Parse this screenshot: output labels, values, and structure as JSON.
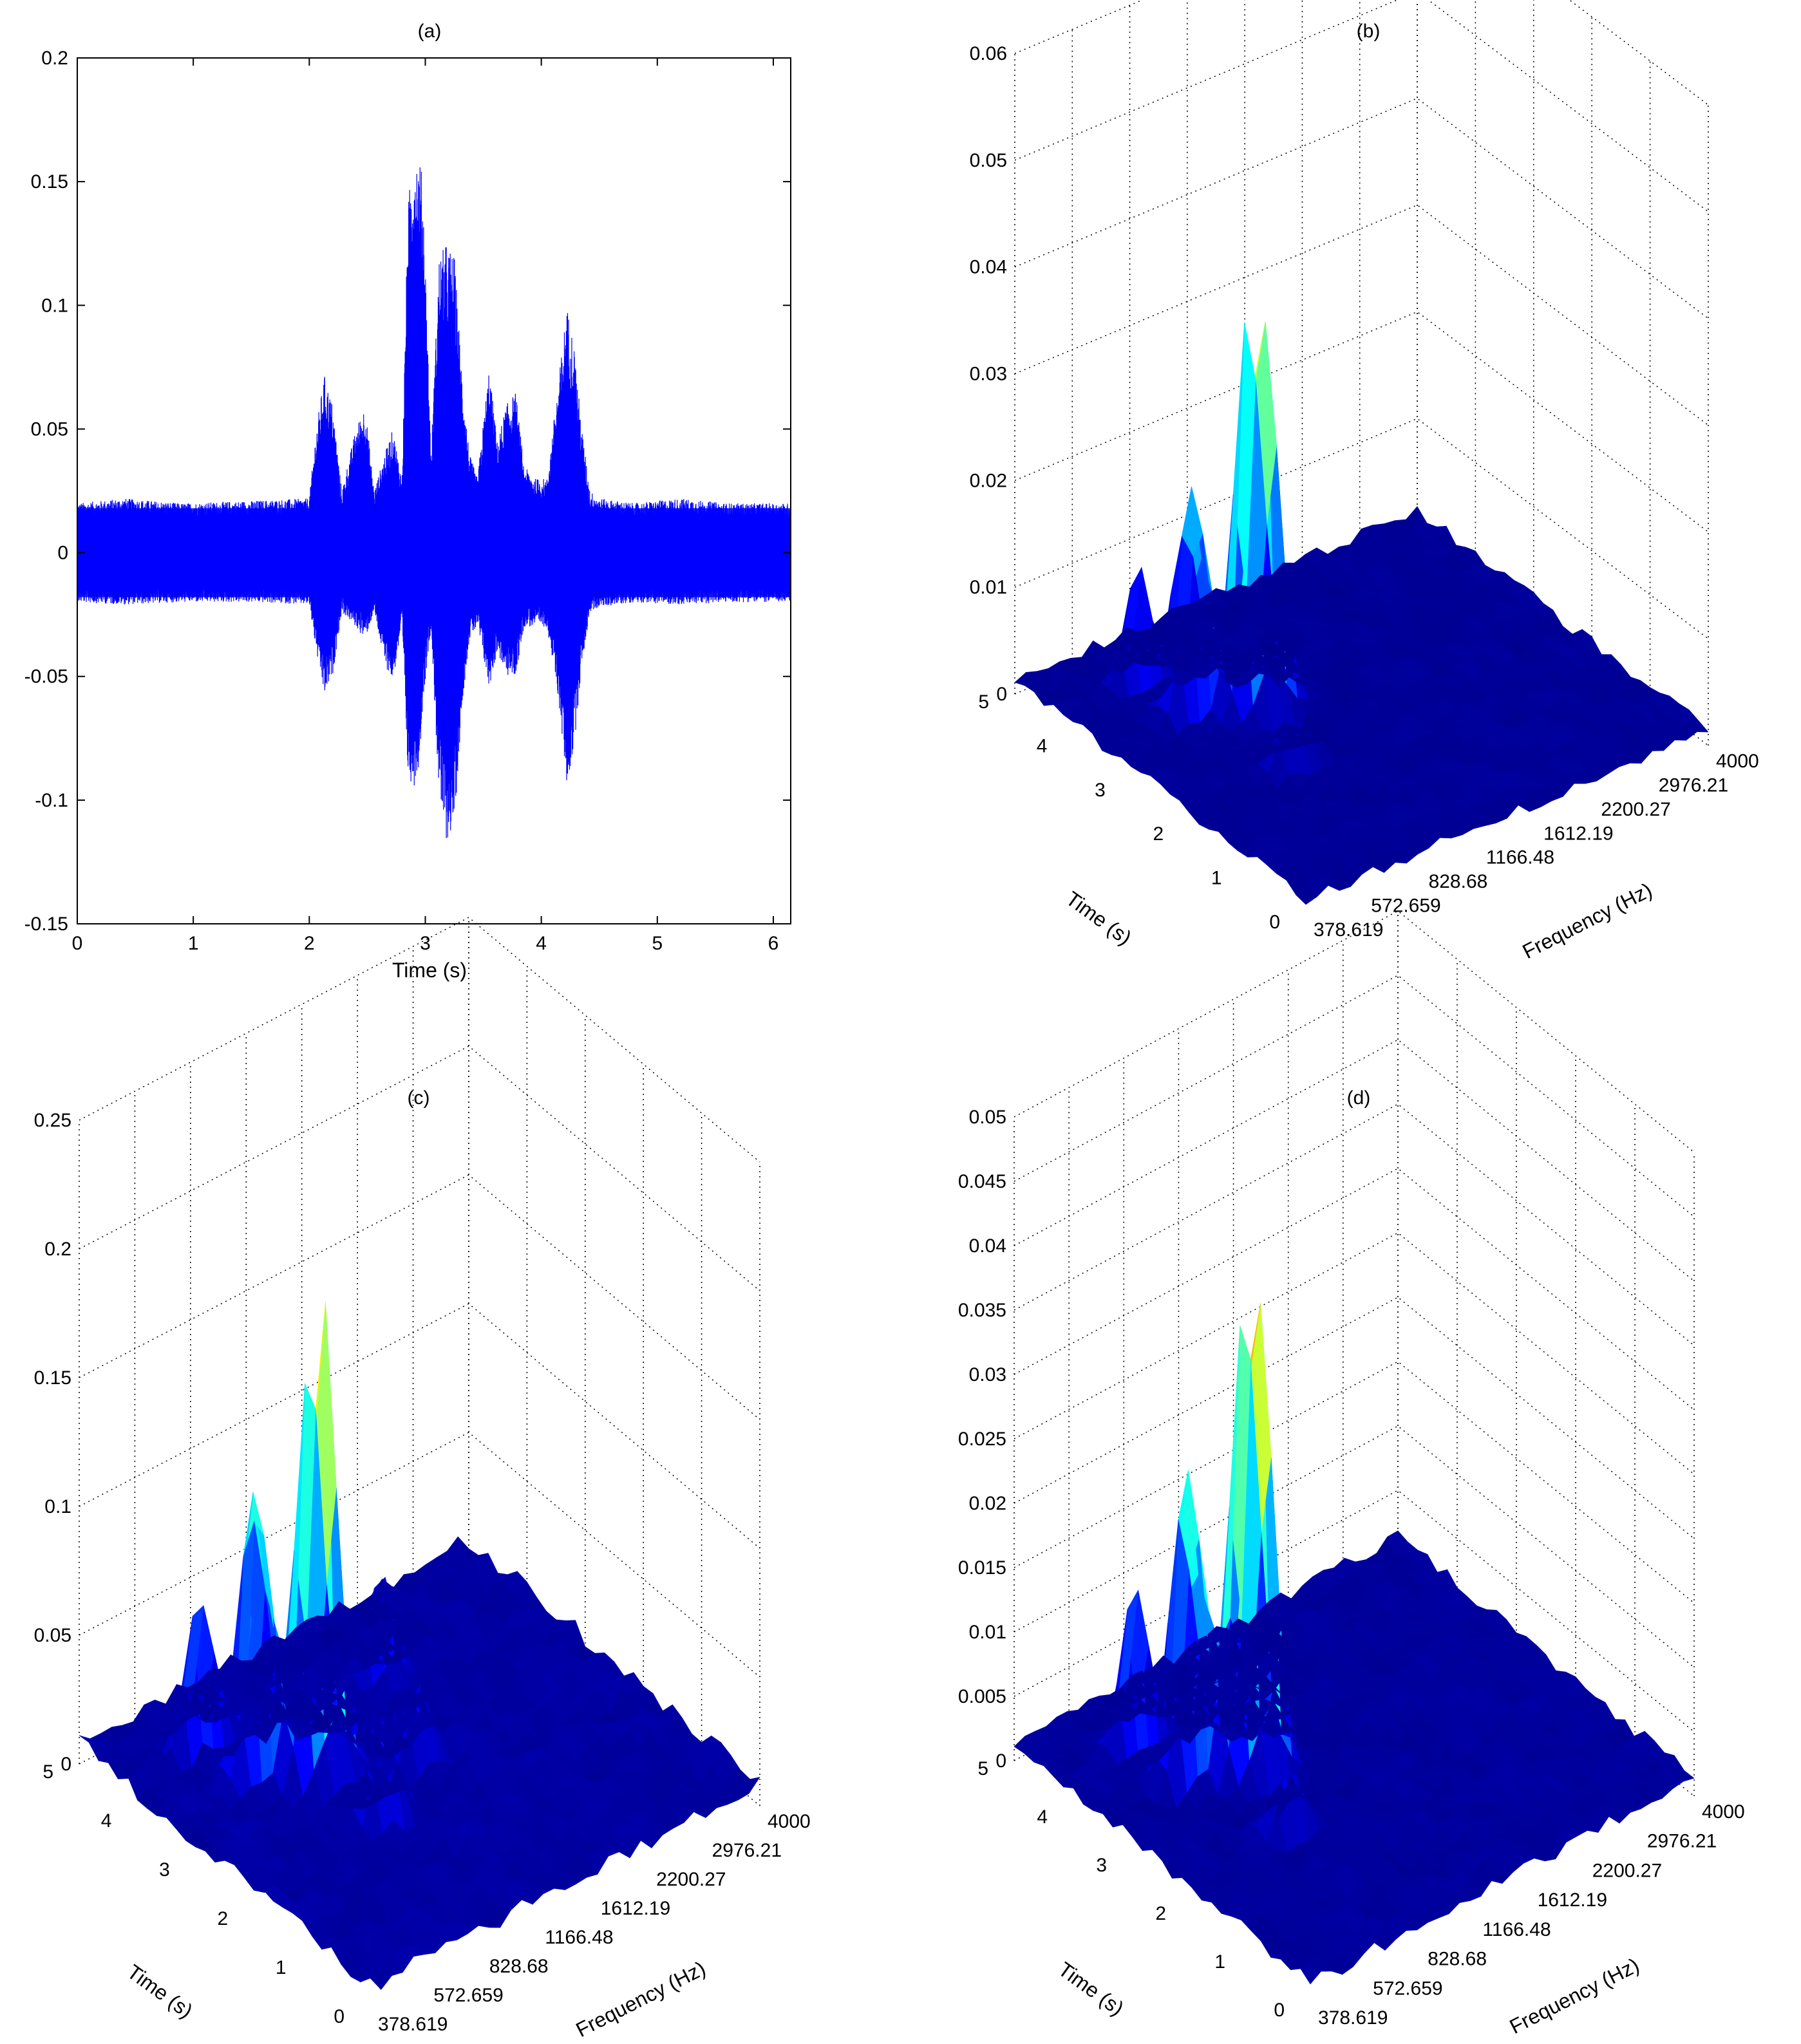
{
  "figure": {
    "background": "#ffffff",
    "signal_color": "#0000ff"
  },
  "chart_data": [
    {
      "id": "a",
      "type": "line",
      "title": "(a)",
      "xlabel": "Time (s)",
      "ylabel": "",
      "xlim": [
        0,
        6.15
      ],
      "ylim": [
        -0.15,
        0.2
      ],
      "xticks": [
        0,
        1,
        2,
        3,
        4,
        5,
        6
      ],
      "yticks": [
        -0.15,
        -0.1,
        -0.05,
        0,
        0.05,
        0.1,
        0.15,
        0.2
      ],
      "grid": false,
      "series_color": "#0000ff",
      "noise_floor": 0.018,
      "envelope": {
        "t": [
          0,
          0.4,
          0.9,
          1.5,
          2.0,
          2.06,
          2.13,
          2.2,
          2.28,
          2.4,
          2.48,
          2.56,
          2.65,
          2.72,
          2.8,
          2.85,
          2.9,
          2.95,
          2.98,
          3.05,
          3.12,
          3.18,
          3.25,
          3.32,
          3.38,
          3.45,
          3.55,
          3.62,
          3.7,
          3.78,
          3.85,
          3.95,
          4.05,
          4.15,
          4.22,
          4.28,
          4.35,
          4.42,
          4.5,
          4.8,
          5.2,
          5.6,
          6.15
        ],
        "upper": [
          0.02,
          0.022,
          0.02,
          0.021,
          0.022,
          0.05,
          0.072,
          0.06,
          0.025,
          0.05,
          0.06,
          0.025,
          0.04,
          0.05,
          0.03,
          0.14,
          0.165,
          0.16,
          0.15,
          0.04,
          0.12,
          0.125,
          0.12,
          0.07,
          0.04,
          0.03,
          0.075,
          0.045,
          0.06,
          0.065,
          0.035,
          0.03,
          0.03,
          0.07,
          0.1,
          0.085,
          0.05,
          0.025,
          0.022,
          0.02,
          0.022,
          0.02,
          0.02
        ],
        "lower": [
          -0.02,
          -0.021,
          -0.02,
          -0.02,
          -0.021,
          -0.04,
          -0.058,
          -0.05,
          -0.024,
          -0.03,
          -0.035,
          -0.024,
          -0.045,
          -0.052,
          -0.03,
          -0.09,
          -0.095,
          -0.085,
          -0.06,
          -0.03,
          -0.1,
          -0.117,
          -0.11,
          -0.06,
          -0.035,
          -0.03,
          -0.055,
          -0.04,
          -0.05,
          -0.05,
          -0.03,
          -0.03,
          -0.03,
          -0.06,
          -0.095,
          -0.08,
          -0.045,
          -0.024,
          -0.022,
          -0.02,
          -0.021,
          -0.02,
          -0.02
        ]
      }
    },
    {
      "id": "b",
      "type": "surface",
      "title": "(b)",
      "xlabel": "Frequency (Hz)",
      "ylabel": "Time (s)",
      "zlabel": "",
      "freq_ticks": [
        "378.619",
        "572.659",
        "828.68",
        "1166.48",
        "1612.19",
        "2200.27",
        "2976.21",
        "4000"
      ],
      "time_ticks": [
        0,
        1,
        2,
        3,
        4,
        5
      ],
      "zlim": [
        0,
        0.06
      ],
      "zticks": [
        0,
        0.01,
        0.02,
        0.03,
        0.04,
        0.05,
        0.06
      ],
      "colormap": "jet",
      "floor_level": 0.002,
      "peaks": [
        {
          "time": 3.0,
          "freq_index": 2.3,
          "z": 0.04
        },
        {
          "time": 3.2,
          "freq_index": 2.2,
          "z": 0.036
        },
        {
          "time": 3.6,
          "freq_index": 1.6,
          "z": 0.024
        },
        {
          "time": 3.4,
          "freq_index": 1.5,
          "z": 0.022
        },
        {
          "time": 4.2,
          "freq_index": 1.3,
          "z": 0.012
        },
        {
          "time": 2.1,
          "freq_index": 1.8,
          "z": 0.009
        }
      ]
    },
    {
      "id": "c",
      "type": "surface",
      "title": "(c)",
      "xlabel": "Frequency (Hz)",
      "ylabel": "Time (s)",
      "zlabel": "",
      "freq_ticks": [
        "378.619",
        "572.659",
        "828.68",
        "1166.48",
        "1612.19",
        "2200.27",
        "2976.21",
        "4000"
      ],
      "time_ticks": [
        0,
        1,
        2,
        3,
        4,
        5
      ],
      "zlim": [
        0,
        0.25
      ],
      "zticks": [
        0,
        0.05,
        0.1,
        0.15,
        0.2,
        0.25
      ],
      "colormap": "jet",
      "floor_level": 0.012,
      "peaks": [
        {
          "time": 3.0,
          "freq_index": 2.3,
          "z": 0.18
        },
        {
          "time": 3.2,
          "freq_index": 2.2,
          "z": 0.16
        },
        {
          "time": 3.6,
          "freq_index": 1.7,
          "z": 0.14
        },
        {
          "time": 3.4,
          "freq_index": 1.5,
          "z": 0.12
        },
        {
          "time": 4.2,
          "freq_index": 1.3,
          "z": 0.07
        },
        {
          "time": 2.1,
          "freq_index": 2.4,
          "z": 0.06
        },
        {
          "time": 2.6,
          "freq_index": 3.5,
          "z": 0.05
        },
        {
          "time": 3.8,
          "freq_index": 4.2,
          "z": 0.045
        }
      ]
    },
    {
      "id": "d",
      "type": "surface",
      "title": "(d)",
      "xlabel": "Frequency (Hz)",
      "ylabel": "Time (s)",
      "zlabel": "",
      "freq_ticks": [
        "378.619",
        "572.659",
        "828.68",
        "1166.48",
        "1612.19",
        "2200.27",
        "2976.21",
        "4000"
      ],
      "time_ticks": [
        0,
        1,
        2,
        3,
        4,
        5
      ],
      "zlim": [
        0,
        0.05
      ],
      "zticks": [
        0,
        0.005,
        0.01,
        0.015,
        0.02,
        0.025,
        0.03,
        0.035,
        0.04,
        0.045,
        0.05
      ],
      "colormap": "jet",
      "floor_level": 0.002,
      "peaks": [
        {
          "time": 3.0,
          "freq_index": 2.3,
          "z": 0.04
        },
        {
          "time": 3.2,
          "freq_index": 2.2,
          "z": 0.038
        },
        {
          "time": 3.6,
          "freq_index": 1.6,
          "z": 0.027
        },
        {
          "time": 3.4,
          "freq_index": 1.5,
          "z": 0.024
        },
        {
          "time": 4.2,
          "freq_index": 1.3,
          "z": 0.014
        },
        {
          "time": 2.1,
          "freq_index": 1.8,
          "z": 0.01
        }
      ]
    }
  ]
}
